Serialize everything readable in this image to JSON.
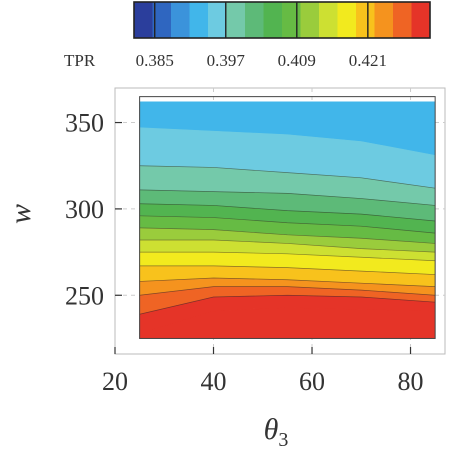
{
  "chart_data": {
    "type": "contour",
    "title": "",
    "xlabel": "θ3",
    "xlabel_main": "θ",
    "xlabel_sub": "3",
    "ylabel": "w",
    "xlim": [
      20,
      87
    ],
    "ylim": [
      216,
      370
    ],
    "xticks": [
      20,
      40,
      60,
      80
    ],
    "yticks": [
      250,
      300,
      350
    ],
    "grid": true,
    "x_range_data": [
      25,
      85
    ],
    "y_range_data": [
      225,
      365
    ],
    "colorbar": {
      "label": "TPR",
      "tick_labels": [
        "0.385",
        "0.397",
        "0.409",
        "0.421"
      ],
      "tick_values": [
        0.385,
        0.397,
        0.409,
        0.421
      ],
      "range": [
        0.3815,
        0.4315
      ],
      "colors": [
        "#2b3e9c",
        "#2f66c0",
        "#3b93db",
        "#41b6ea",
        "#6dcbe1",
        "#74c9aa",
        "#5dba78",
        "#52b450",
        "#66bb44",
        "#9acc3c",
        "#cde032",
        "#f2ea1e",
        "#f8c21c",
        "#f5931e",
        "#ef6424",
        "#e53428"
      ]
    },
    "contour": {
      "levels": [
        0.3815,
        0.3846,
        0.3877,
        0.3909,
        0.394,
        0.3971,
        0.4002,
        0.4034,
        0.4065,
        0.4096,
        0.4127,
        0.4159,
        0.419,
        0.4221,
        0.4252,
        0.4284,
        0.4315
      ],
      "boundaries": [
        {
          "x": [
            25,
            40,
            55,
            70,
            85
          ],
          "y": [
            362,
            362,
            362,
            362,
            362
          ]
        },
        {
          "x": [
            25,
            40,
            55,
            70,
            85
          ],
          "y": [
            362,
            362,
            362,
            362,
            362
          ]
        },
        {
          "x": [
            25,
            40,
            55,
            70,
            85
          ],
          "y": [
            362,
            362,
            362,
            362,
            362
          ]
        },
        {
          "x": [
            25,
            40,
            55,
            70,
            85
          ],
          "y": [
            362,
            362,
            362,
            362,
            362
          ]
        },
        {
          "x": [
            25,
            40,
            55,
            70,
            85
          ],
          "y": [
            347,
            345,
            343,
            339,
            331
          ]
        },
        {
          "x": [
            25,
            40,
            55,
            70,
            85
          ],
          "y": [
            325,
            324,
            321,
            318,
            312
          ]
        },
        {
          "x": [
            25,
            40,
            55,
            70,
            85
          ],
          "y": [
            311,
            310,
            309,
            306,
            302
          ]
        },
        {
          "x": [
            25,
            40,
            55,
            70,
            85
          ],
          "y": [
            303,
            302,
            299,
            297,
            293
          ]
        },
        {
          "x": [
            25,
            40,
            55,
            70,
            85
          ],
          "y": [
            296,
            295,
            292,
            290,
            286
          ]
        },
        {
          "x": [
            25,
            40,
            55,
            70,
            85
          ],
          "y": [
            289,
            288,
            285,
            283,
            280
          ]
        },
        {
          "x": [
            25,
            40,
            55,
            70,
            85
          ],
          "y": [
            282,
            282,
            280,
            277,
            275
          ]
        },
        {
          "x": [
            25,
            40,
            55,
            70,
            85
          ],
          "y": [
            275,
            275,
            274,
            272,
            270
          ]
        },
        {
          "x": [
            25,
            40,
            55,
            70,
            85
          ],
          "y": [
            267,
            267,
            266,
            264,
            262
          ]
        },
        {
          "x": [
            25,
            40,
            55,
            70,
            85
          ],
          "y": [
            258,
            260,
            259,
            257,
            255
          ]
        },
        {
          "x": [
            25,
            40,
            55,
            70,
            85
          ],
          "y": [
            250,
            255,
            255,
            253,
            250
          ]
        },
        {
          "x": [
            25,
            40,
            55,
            70,
            85
          ],
          "y": [
            239,
            249,
            250,
            249,
            246
          ]
        },
        {
          "x": [
            25,
            40,
            55,
            70,
            85
          ],
          "y": [
            228,
            241,
            243,
            242,
            241
          ]
        }
      ]
    }
  }
}
